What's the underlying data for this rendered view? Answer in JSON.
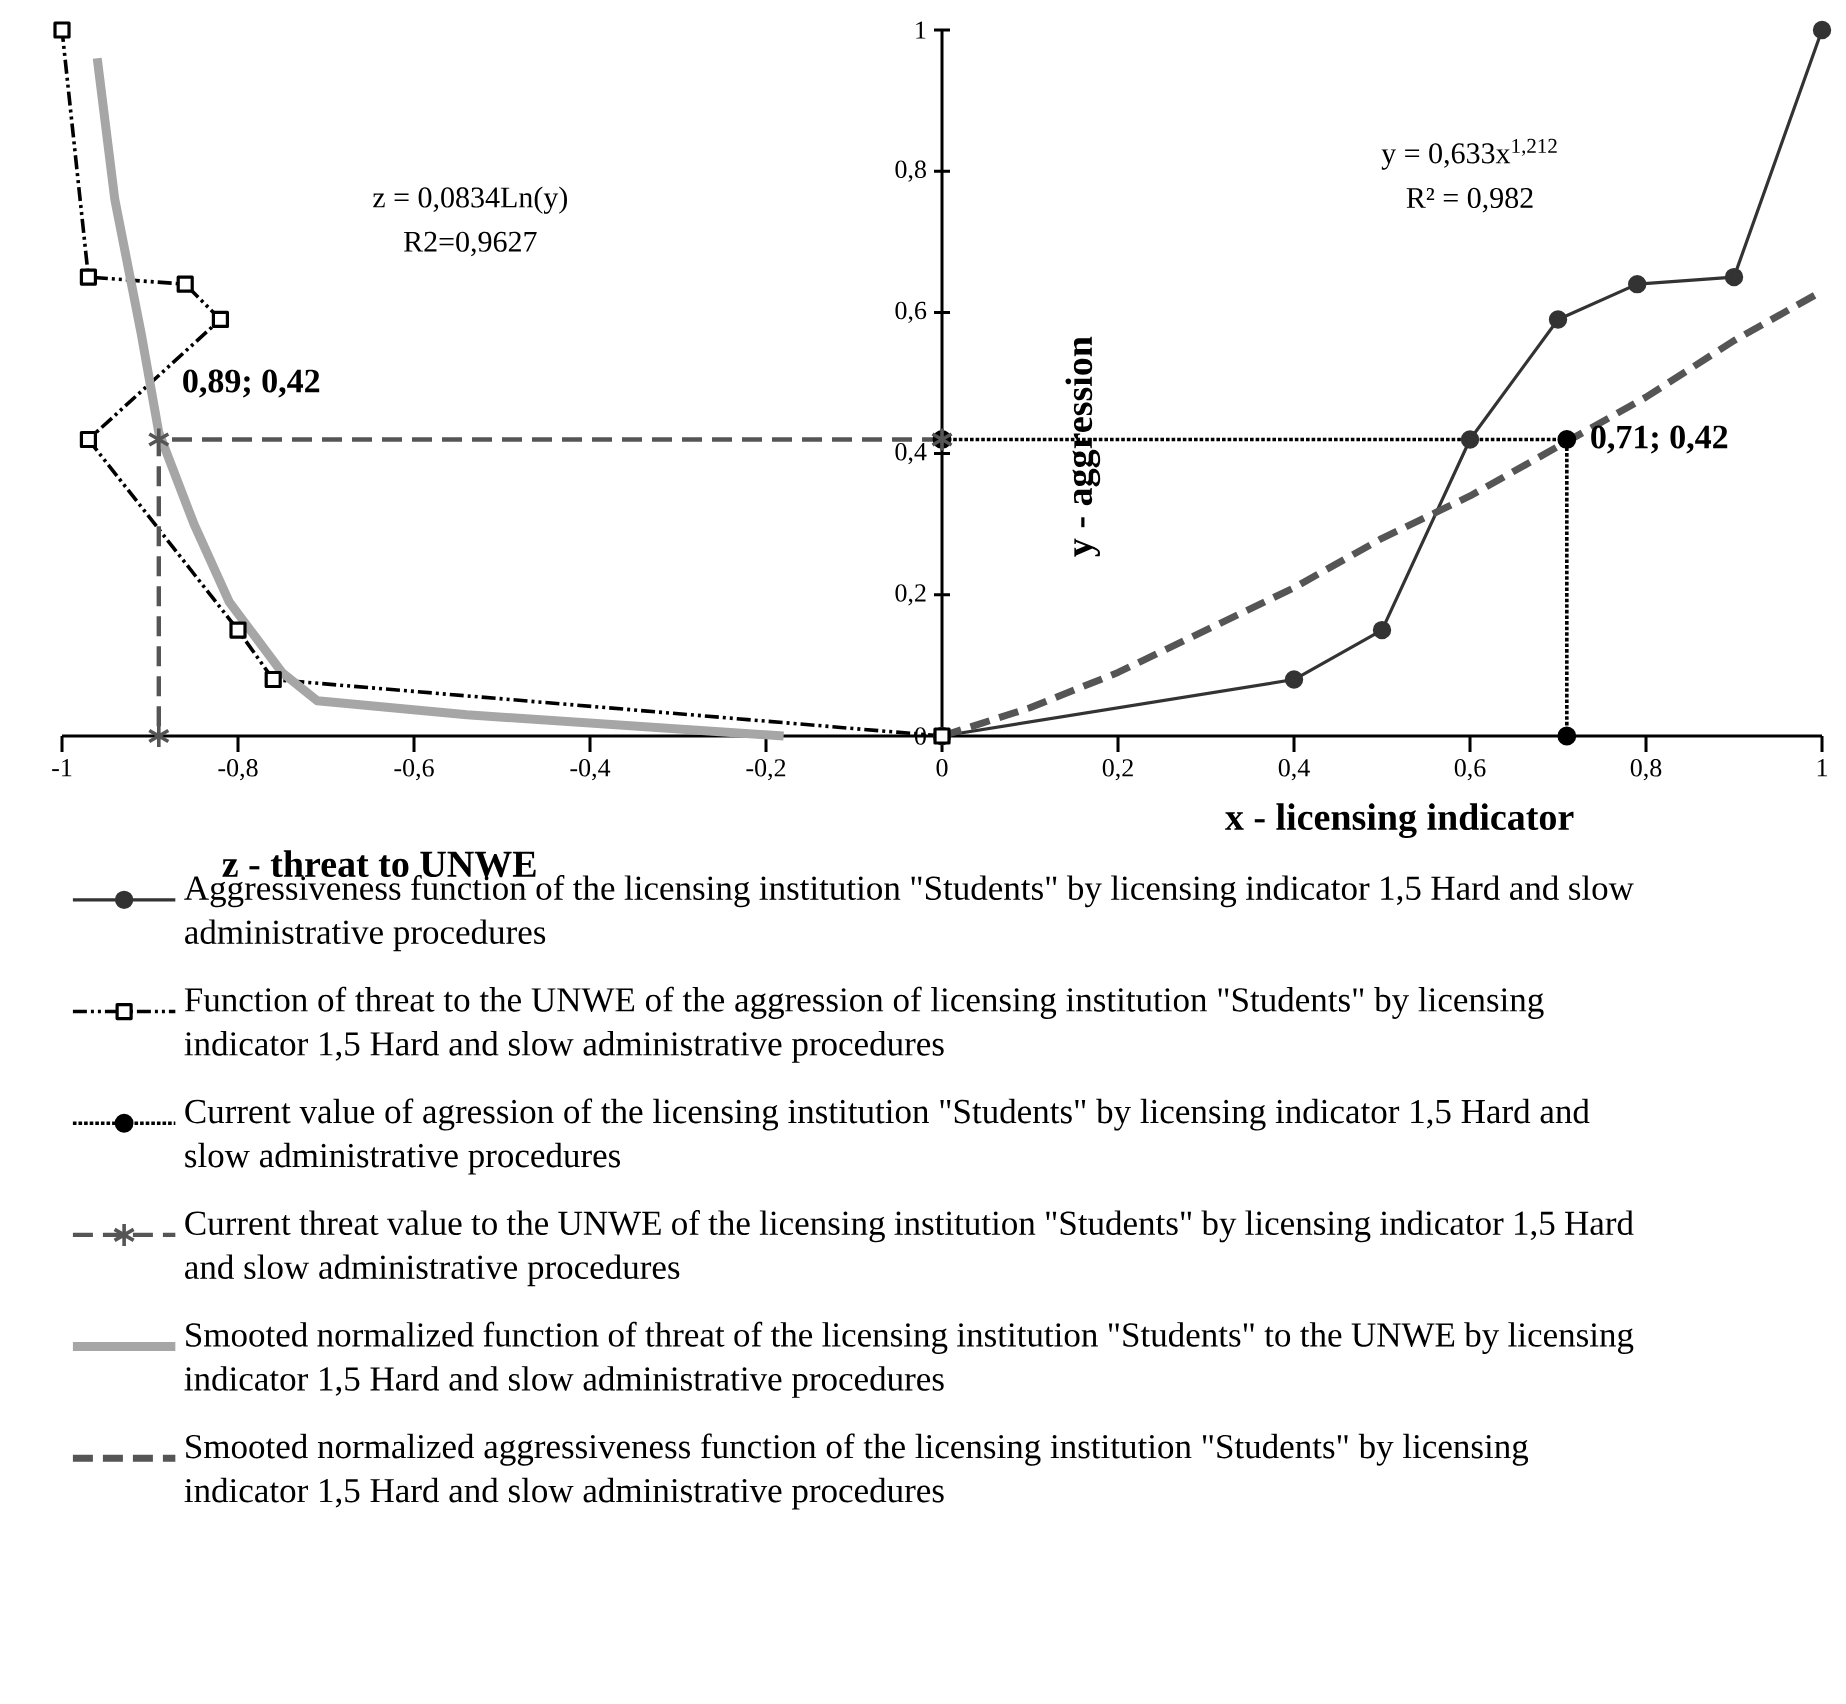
{
  "chart_data": {
    "type": "line",
    "xlabel": "x - licensing indicator",
    "ylabel": "y - aggression",
    "xlim": [
      -1,
      1
    ],
    "ylim": [
      0,
      1
    ],
    "xticks": [
      -1,
      {
        "value": -0.8,
        "label": "-0,8"
      },
      {
        "value": -0.6,
        "label": "-0,6"
      },
      {
        "value": -0.4,
        "label": "-0,4"
      },
      {
        "value": -0.2,
        "label": "-0,2"
      },
      0,
      {
        "value": 0.2,
        "label": "0,2"
      },
      {
        "value": 0.4,
        "label": "0,4"
      },
      {
        "value": 0.6,
        "label": "0,6"
      },
      {
        "value": 0.8,
        "label": "0,8"
      },
      1
    ],
    "yticks": [
      0,
      {
        "value": 0.2,
        "label": "0,2"
      },
      {
        "value": 0.4,
        "label": "0,4"
      },
      {
        "value": 0.6,
        "label": "0,6"
      },
      {
        "value": 0.8,
        "label": "0,8"
      },
      1
    ],
    "legend": "bottom",
    "grid": false,
    "series": [
      {
        "name": "Aggressiveness function of the licensing institution \"Students\" by licensing indicator 1,5 Hard and slow administrative procedures",
        "color": "#333333",
        "marker": "circle",
        "line_style": "solid",
        "x": [
          0,
          0.4,
          0.5,
          0.6,
          0.7,
          0.79,
          0.9,
          1
        ],
        "values": [
          0,
          0.08,
          0.15,
          0.42,
          0.59,
          0.64,
          0.65,
          1
        ]
      },
      {
        "name": "Function of threat to the UNWE of the aggression of licensing institution \"Students\" by licensing indicator 1,5 Hard and slow administrative procedures",
        "color": "#000000",
        "marker": "square",
        "line_style": "dashdot",
        "x": [
          0,
          -0.76,
          -0.8,
          -0.97,
          -0.82,
          -0.86,
          -0.97,
          -1
        ],
        "values": [
          0,
          0.08,
          0.15,
          0.42,
          0.59,
          0.64,
          0.65,
          1
        ]
      },
      {
        "name": "Current value of agression of the licensing institution \"Students\" by licensing indicator 1,5 Hard and slow administrative procedures",
        "color": "#000000",
        "marker": "circle",
        "line_style": "dotted",
        "x": [
          0,
          0.71,
          0.71
        ],
        "values": [
          0.42,
          0.42,
          0
        ]
      },
      {
        "name": "Current threat value to the UNWE of the licensing institution \"Students\" by licensing indicator 1,5 Hard and slow administrative procedures",
        "color": "#555555",
        "marker": "cross",
        "line_style": "dashed",
        "x": [
          0,
          -0.89,
          -0.89
        ],
        "values": [
          0.42,
          0.42,
          0
        ]
      },
      {
        "name": "Smooted normalized function of threat of the licensing institution \"Students\" to the UNWE by licensing indicator 1,5 Hard and slow administrative procedures",
        "color": "#a6a6a6",
        "marker": "none",
        "line_style": "solid",
        "x": [
          -0.96,
          -0.94,
          -0.91,
          -0.89,
          -0.85,
          -0.81,
          -0.75,
          -0.71,
          -0.54,
          -0.18
        ],
        "values": [
          0.96,
          0.76,
          0.57,
          0.43,
          0.3,
          0.19,
          0.09,
          0.05,
          0.03,
          0
        ]
      },
      {
        "name": "Smooted normalized aggressiveness function of the licensing institution \"Students\" by licensing indicator 1,5 Hard and slow administrative procedures",
        "color": "#555555",
        "marker": "none",
        "line_style": "dashed",
        "x": [
          0,
          0.1,
          0.2,
          0.3,
          0.4,
          0.5,
          0.6,
          0.7,
          0.8,
          0.9,
          1
        ],
        "values": [
          0,
          0.04,
          0.09,
          0.15,
          0.21,
          0.28,
          0.34,
          0.41,
          0.48,
          0.56,
          0.63
        ]
      }
    ],
    "annotations": [
      "z = 0,0834Ln(y)",
      "R2=0,9627",
      "y = 0,633x$^{1,212}$",
      "R² = 0,982",
      "z - threat to UNWE",
      {
        "text": "0,89; 0,42",
        "x": -0.89,
        "y": 0.42
      },
      {
        "text": "0,71; 0,42",
        "x": 0.71,
        "y": 0.42
      }
    ]
  }
}
